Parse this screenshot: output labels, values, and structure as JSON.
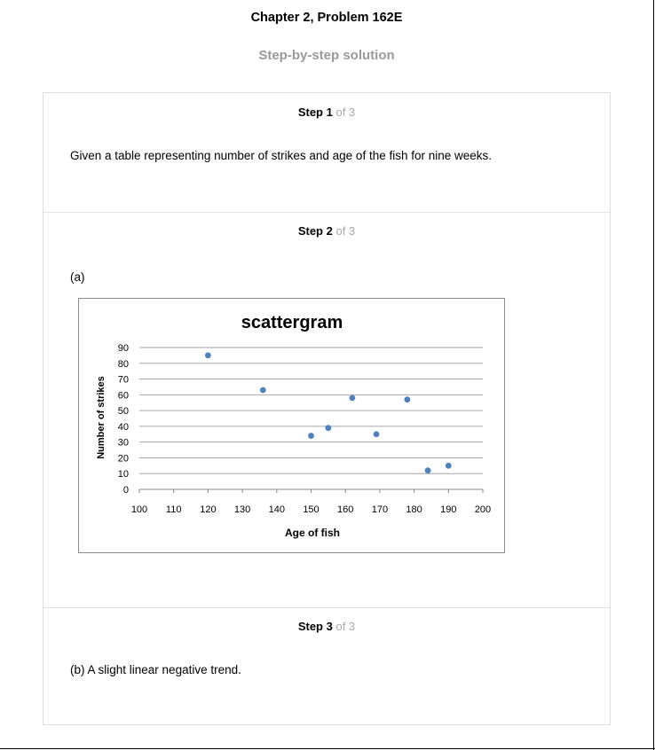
{
  "header": {
    "title": "Chapter 2, Problem 162E",
    "subtitle": "Step-by-step solution"
  },
  "steps": [
    {
      "label": "Step 1",
      "of": "of 3",
      "text": "Given a table representing number of strikes and age of the fish for nine weeks."
    },
    {
      "label": "Step 2",
      "of": "of 3",
      "part": "(a)"
    },
    {
      "label": "Step 3",
      "of": "of 3",
      "text": "(b) A slight linear negative trend."
    }
  ],
  "chart_data": {
    "type": "scatter",
    "title": "scattergram",
    "xlabel": "Age of fish",
    "ylabel": "Number of strikes",
    "xlim": [
      100,
      200
    ],
    "ylim": [
      0,
      90
    ],
    "xticks": [
      100,
      110,
      120,
      130,
      140,
      150,
      160,
      170,
      180,
      190,
      200
    ],
    "yticks": [
      0,
      10,
      20,
      30,
      40,
      50,
      60,
      70,
      80,
      90
    ],
    "grid": "horizontal",
    "legend": "none",
    "marker_color": "#4f81bd",
    "points": [
      {
        "x": 120,
        "y": 85
      },
      {
        "x": 136,
        "y": 63
      },
      {
        "x": 150,
        "y": 34
      },
      {
        "x": 155,
        "y": 39
      },
      {
        "x": 162,
        "y": 58
      },
      {
        "x": 169,
        "y": 35
      },
      {
        "x": 178,
        "y": 57
      },
      {
        "x": 184,
        "y": 12
      },
      {
        "x": 190,
        "y": 15
      }
    ]
  }
}
